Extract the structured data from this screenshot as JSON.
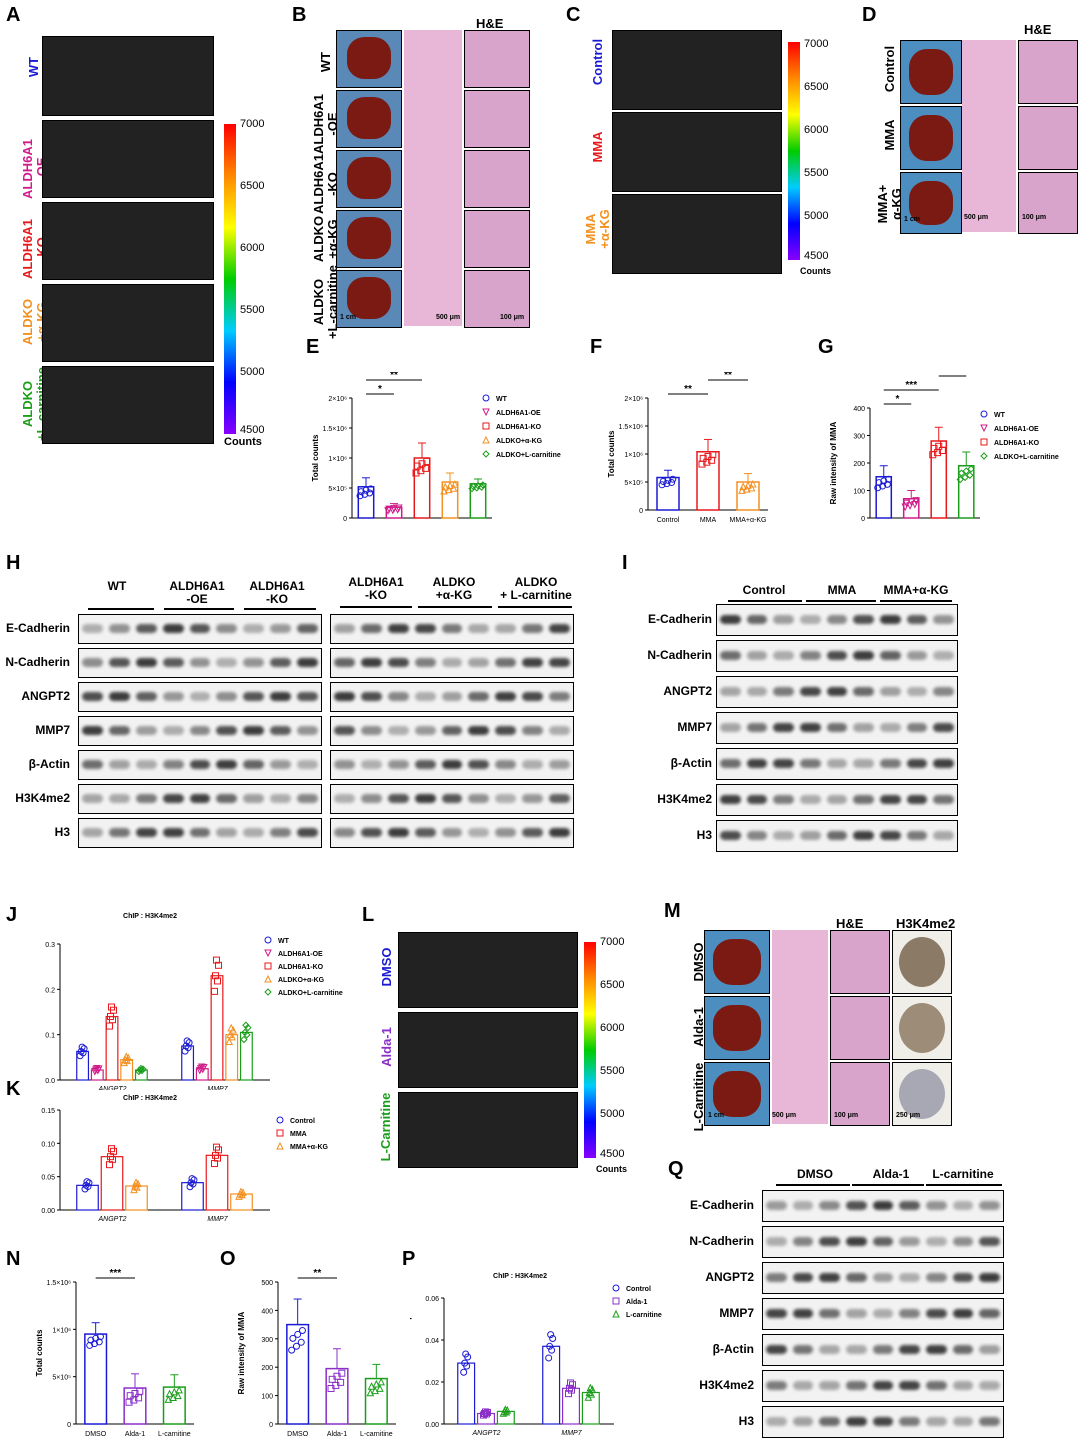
{
  "panels": {
    "A": {
      "label": "A",
      "groups": [
        "WT",
        "ALDH6A1\n-OE",
        "ALDH6A1\n-KO",
        "ALDKO\n+α-KG",
        "ALDKO\n+L-carnitine"
      ],
      "group_colors": [
        "#1a1ad4",
        "#d01c8b",
        "#e8191c",
        "#f39020",
        "#1a9e1a"
      ],
      "colorbar": {
        "ticks": [
          "7000",
          "6500",
          "6000",
          "5500",
          "5000",
          "4500"
        ],
        "unit": "Counts"
      }
    },
    "B": {
      "label": "B",
      "he": "H&E",
      "groups": [
        "WT",
        "ALDH6A1\n-OE",
        "ALDH6A1\n-KO",
        "ALDKO\n+α-KG",
        "ALDKO\n+L-carnitine"
      ],
      "scalebars": [
        "1 cm",
        "500 μm",
        "100 μm"
      ]
    },
    "C": {
      "label": "C",
      "groups": [
        "Control",
        "MMA",
        "MMA\n+α-KG"
      ],
      "group_colors": [
        "#1a1ad4",
        "#e8191c",
        "#f39020"
      ],
      "colorbar": {
        "ticks": [
          "7000",
          "6500",
          "6000",
          "5500",
          "5000",
          "4500"
        ],
        "unit": "Counts"
      }
    },
    "D": {
      "label": "D",
      "he": "H&E",
      "groups": [
        "Control",
        "MMA",
        "MMA+\nα-KG"
      ],
      "scalebars": [
        "1 cm",
        "500 μm",
        "100 μm"
      ]
    },
    "E": {
      "label": "E"
    },
    "F": {
      "label": "F"
    },
    "G": {
      "label": "G"
    },
    "H": {
      "label": "H",
      "headers_left": [
        "WT",
        "ALDH6A1\n-OE",
        "ALDH6A1\n-KO"
      ],
      "headers_right": [
        "ALDH6A1\n-KO",
        "ALDKO\n+α-KG",
        "ALDKO\n+ L-carnitine"
      ],
      "rows": [
        "E-Cadherin",
        "N-Cadherin",
        "ANGPT2",
        "MMP7",
        "β-Actin",
        "H3K4me2",
        "H3"
      ]
    },
    "I": {
      "label": "I",
      "headers": [
        "Control",
        "MMA",
        "MMA+α-KG"
      ],
      "rows": [
        "E-Cadherin",
        "N-Cadherin",
        "ANGPT2",
        "MMP7",
        "β-Actin",
        "H3K4me2",
        "H3"
      ]
    },
    "J": {
      "label": "J"
    },
    "K": {
      "label": "K"
    },
    "L": {
      "label": "L",
      "groups": [
        "DMSO",
        "Alda-1",
        "L-Carnitine"
      ],
      "group_colors": [
        "#1a1ad4",
        "#8b2fc9",
        "#1a9e1a"
      ],
      "colorbar": {
        "ticks": [
          "7000",
          "6500",
          "6000",
          "5500",
          "5000",
          "4500"
        ],
        "unit": "Counts"
      }
    },
    "M": {
      "label": "M",
      "he": "H&E",
      "ihc": "H3K4me2",
      "groups": [
        "DMSO",
        "Alda-1",
        "L-Carnitine"
      ],
      "scalebars": [
        "1 cm",
        "500 μm",
        "100 μm",
        "250 μm"
      ]
    },
    "N": {
      "label": "N"
    },
    "O": {
      "label": "O"
    },
    "P": {
      "label": "P"
    },
    "Q": {
      "label": "Q",
      "headers": [
        "DMSO",
        "Alda-1",
        "L-carnitine"
      ],
      "rows": [
        "E-Cadherin",
        "N-Cadherin",
        "ANGPT2",
        "MMP7",
        "β-Actin",
        "H3K4me2",
        "H3"
      ]
    }
  },
  "chart_data": [
    {
      "panel": "E",
      "type": "bar",
      "categories": [
        "WT",
        "ALDH6A1-OE",
        "ALDH6A1-KO",
        "ALDKO+α-KG",
        "ALDKO+L-carnitine"
      ],
      "values": [
        520000,
        180000,
        1000000,
        600000,
        570000
      ],
      "errors": [
        150000,
        60000,
        250000,
        150000,
        80000
      ],
      "colors": [
        "#1a1ad4",
        "#d01c8b",
        "#e8191c",
        "#f39020",
        "#1a9e1a"
      ],
      "markers": [
        "circle",
        "triangle-down",
        "square",
        "triangle",
        "diamond"
      ],
      "ylabel": "Total counts",
      "yticks": [
        "0",
        "5×10⁵",
        "1×10⁶",
        "1.5×10⁶",
        "2×10⁶"
      ],
      "ylim": [
        0,
        2000000
      ],
      "sig": [
        {
          "a": 0,
          "b": 1,
          "t": "*"
        },
        {
          "a": 0,
          "b": 2,
          "t": "**"
        },
        {
          "a": 2,
          "b": 3,
          "t": "*"
        },
        {
          "a": 2,
          "b": 4,
          "t": "**"
        }
      ],
      "legend": [
        "WT",
        "ALDH6A1-OE",
        "ALDH6A1-KO",
        "ALDKO+α-KG",
        "ALDKO+L-carnitine"
      ],
      "xlabels": false
    },
    {
      "panel": "F",
      "type": "bar",
      "categories": [
        "Control",
        "MMA",
        "MMA+α-KG"
      ],
      "values": [
        580000,
        1040000,
        500000
      ],
      "errors": [
        130000,
        220000,
        150000
      ],
      "colors": [
        "#1a1ad4",
        "#e8191c",
        "#f39020"
      ],
      "markers": [
        "circle",
        "square",
        "triangle"
      ],
      "ylabel": "Total counts",
      "yticks": [
        "0",
        "5×10⁵",
        "1×10⁶",
        "1.5×10⁶",
        "2×10⁶"
      ],
      "ylim": [
        0,
        2000000
      ],
      "sig": [
        {
          "a": 0,
          "b": 1,
          "t": "**"
        },
        {
          "a": 1,
          "b": 2,
          "t": "**"
        }
      ],
      "xlabels": true
    },
    {
      "panel": "G",
      "type": "bar",
      "categories": [
        "WT",
        "ALDH6A1-OE",
        "ALDH6A1-KO",
        "ALDKO+L-carnitine"
      ],
      "values": [
        150,
        70,
        280,
        190
      ],
      "errors": [
        40,
        30,
        50,
        50
      ],
      "colors": [
        "#1a1ad4",
        "#d01c8b",
        "#e8191c",
        "#1a9e1a"
      ],
      "markers": [
        "circle",
        "triangle-down",
        "square",
        "diamond"
      ],
      "ylabel": "Raw intensity of MMA",
      "yticks": [
        "0",
        "100",
        "200",
        "300",
        "400"
      ],
      "ylim": [
        0,
        400
      ],
      "sig": [
        {
          "a": 0,
          "b": 1,
          "t": "*"
        },
        {
          "a": 0,
          "b": 2,
          "t": "***"
        },
        {
          "a": 2,
          "b": 3,
          "t": "*"
        }
      ],
      "legend": [
        "WT",
        "ALDH6A1-OE",
        "ALDH6A1-KO",
        "ALDKO+L-carnitine"
      ],
      "xlabels": false
    },
    {
      "panel": "J",
      "type": "grouped-bar",
      "title": "ChIP : H3K4me2",
      "categories": [
        "ANGPT2",
        "MMP7"
      ],
      "series": [
        {
          "name": "WT",
          "values": [
            0.063,
            0.075
          ]
        },
        {
          "name": "ALDH6A1-OE",
          "values": [
            0.022,
            0.025
          ]
        },
        {
          "name": "ALDH6A1-KO",
          "values": [
            0.14,
            0.23
          ]
        },
        {
          "name": "ALDKO+α-KG",
          "values": [
            0.045,
            0.1
          ]
        },
        {
          "name": "ALDKO+L-carnitine",
          "values": [
            0.022,
            0.105
          ]
        }
      ],
      "colors": [
        "#1a1ad4",
        "#d01c8b",
        "#e8191c",
        "#f39020",
        "#1a9e1a"
      ],
      "ylabel": "Relative enrichment to input",
      "yticks": [
        "0.0",
        "0.1",
        "0.2",
        "0.3"
      ],
      "ylim": [
        0,
        0.3
      ]
    },
    {
      "panel": "K",
      "type": "grouped-bar",
      "title": "ChIP : H3K4me2",
      "categories": [
        "ANGPT2",
        "MMP7"
      ],
      "series": [
        {
          "name": "Control",
          "values": [
            0.037,
            0.041
          ]
        },
        {
          "name": "MMA",
          "values": [
            0.08,
            0.082
          ]
        },
        {
          "name": "MMA+α-KG",
          "values": [
            0.036,
            0.024
          ]
        }
      ],
      "colors": [
        "#1a1ad4",
        "#e8191c",
        "#f39020"
      ],
      "ylabel": "Relative enrichment to input",
      "yticks": [
        "0.00",
        "0.05",
        "0.10",
        "0.15"
      ],
      "ylim": [
        0,
        0.15
      ]
    },
    {
      "panel": "N",
      "type": "bar",
      "categories": [
        "DMSO",
        "Alda-1",
        "L-carnitine"
      ],
      "values": [
        950000,
        380000,
        390000
      ],
      "errors": [
        120000,
        150000,
        130000
      ],
      "colors": [
        "#1a1ad4",
        "#8b2fc9",
        "#1a9e1a"
      ],
      "markers": [
        "circle",
        "square",
        "triangle"
      ],
      "ylabel": "Total counts",
      "yticks": [
        "0",
        "5×10⁵",
        "1×10⁶",
        "1.5×10⁶"
      ],
      "ylim": [
        0,
        1500000
      ],
      "sig": [
        {
          "a": 0,
          "b": 1,
          "t": "***"
        },
        {
          "a": 0,
          "b": 2,
          "t": "***"
        }
      ],
      "xlabels": true
    },
    {
      "panel": "O",
      "type": "bar",
      "categories": [
        "DMSO",
        "Alda-1",
        "L-carnitine"
      ],
      "values": [
        350,
        195,
        160
      ],
      "errors": [
        90,
        70,
        50
      ],
      "colors": [
        "#1a1ad4",
        "#8b2fc9",
        "#1a9e1a"
      ],
      "markers": [
        "circle",
        "square",
        "triangle"
      ],
      "ylabel": "Raw intensity of MMA",
      "yticks": [
        "0",
        "100",
        "200",
        "300",
        "400",
        "500"
      ],
      "ylim": [
        0,
        500
      ],
      "sig": [
        {
          "a": 0,
          "b": 1,
          "t": "**"
        },
        {
          "a": 0,
          "b": 2,
          "t": "***"
        }
      ],
      "xlabels": true
    },
    {
      "panel": "P",
      "type": "grouped-bar",
      "title": "ChIP : H3K4me2",
      "categories": [
        "ANGPT2",
        "MMP7"
      ],
      "series": [
        {
          "name": "Control",
          "values": [
            0.029,
            0.037
          ]
        },
        {
          "name": "Alda-1",
          "values": [
            0.005,
            0.017
          ]
        },
        {
          "name": "L-carnitine",
          "values": [
            0.006,
            0.015
          ]
        }
      ],
      "colors": [
        "#1a1ad4",
        "#8b2fc9",
        "#1a9e1a"
      ],
      "ylabel": "Relative enrichment to input",
      "yticks": [
        "0.00",
        "0.02",
        "0.04",
        "0.06"
      ],
      "ylim": [
        0,
        0.06
      ]
    }
  ]
}
